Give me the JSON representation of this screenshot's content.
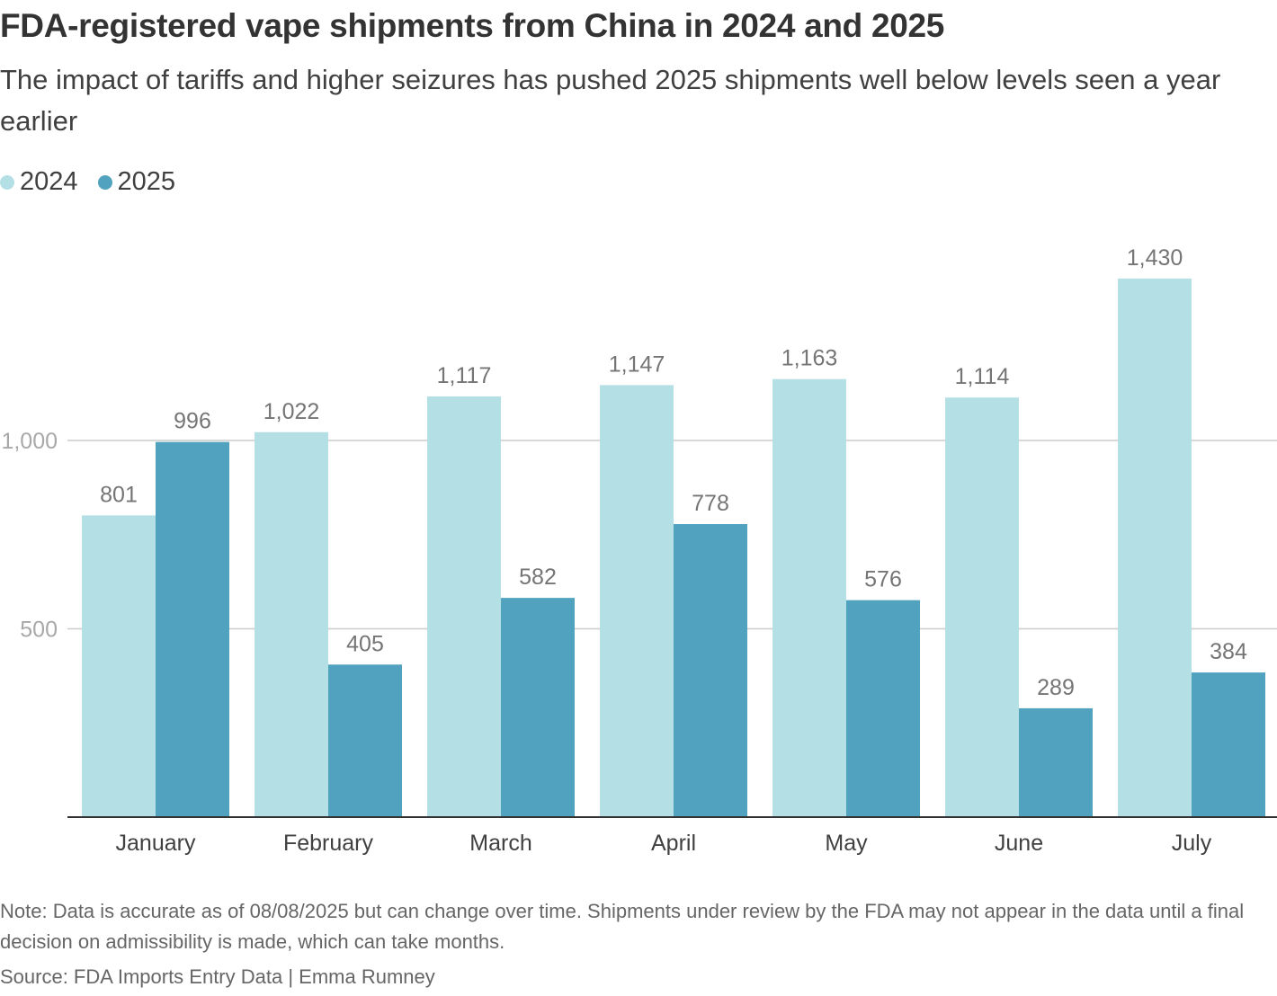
{
  "header": {
    "title": "FDA-registered vape shipments from China in 2024 and 2025",
    "subtitle": "The impact of tariffs and higher seizures has pushed 2025 shipments well below levels seen a year earlier"
  },
  "legend": {
    "items": [
      {
        "label": "2024",
        "color": "#b4e0e5"
      },
      {
        "label": "2025",
        "color": "#50a2bf"
      }
    ]
  },
  "chart_data": {
    "type": "bar",
    "title": "FDA-registered vape shipments from China in 2024 and 2025",
    "categories": [
      "January",
      "February",
      "March",
      "April",
      "May",
      "June",
      "July"
    ],
    "series": [
      {
        "name": "2024",
        "color": "#b4e0e5",
        "values": [
          801,
          1022,
          1117,
          1147,
          1163,
          1114,
          1430
        ],
        "labels": [
          "801",
          "1,022",
          "1,117",
          "1,147",
          "1,163",
          "1,114",
          "1,430"
        ]
      },
      {
        "name": "2025",
        "color": "#50a2bf",
        "values": [
          996,
          405,
          582,
          778,
          576,
          289,
          384
        ],
        "labels": [
          "996",
          "405",
          "582",
          "778",
          "576",
          "289",
          "384"
        ]
      }
    ],
    "y_ticks": [
      {
        "value": 500,
        "label": "500"
      },
      {
        "value": 1000,
        "label": "1,000"
      }
    ],
    "ylim": [
      0,
      1500
    ],
    "xlabel": "",
    "ylabel": "",
    "grid": true,
    "legend_position": "top-left"
  },
  "footer": {
    "note": "Note: Data is accurate as of 08/08/2025 but can change over time. Shipments under review by the FDA may not appear in the data until a final decision on admissibility is made, which can take months.",
    "source": "Source: FDA Imports Entry Data | Emma Rumney"
  }
}
